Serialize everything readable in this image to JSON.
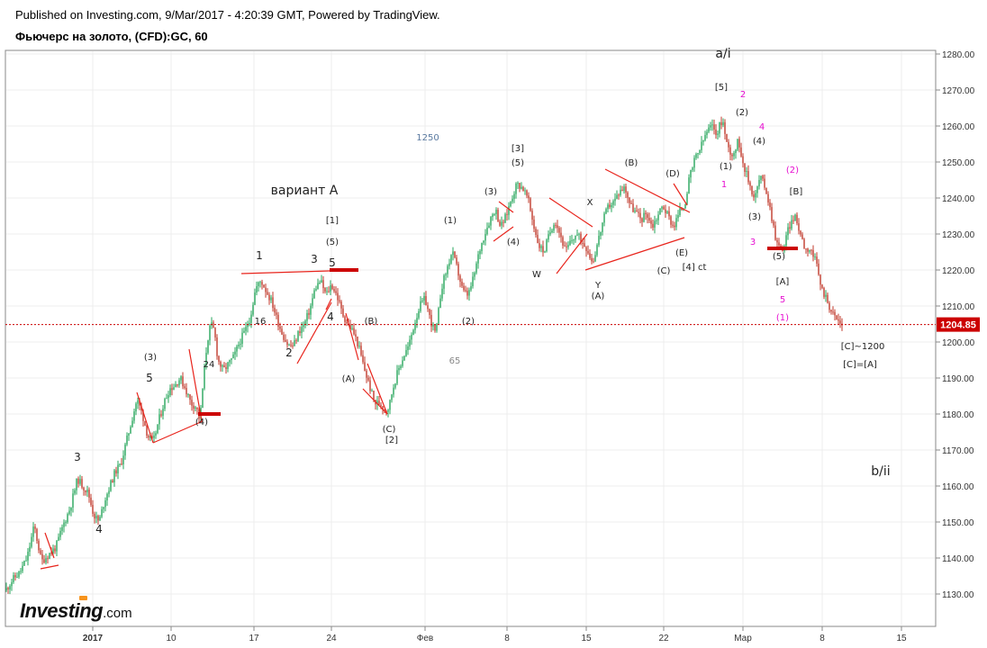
{
  "header": {
    "published": "Published on Investing.com, 9/Mar/2017 - 4:20:39 GMT, Powered by TradingView.",
    "title": "Фьючерс на золото, (CFD):GC, 60"
  },
  "logo": {
    "name": "Investing",
    "tld": ".com",
    "accent": "#f7941d"
  },
  "colors": {
    "up": "#26a65b",
    "down": "#c0392b",
    "line": "#e8241c",
    "level": "#cc0000",
    "grid": "#eeeeee",
    "pink": "#e60fd0"
  },
  "current_price": "1204.85",
  "chart_data": {
    "type": "candlestick",
    "ylim": [
      1122,
      1285
    ],
    "y_ticks": [
      1130,
      1140,
      1150,
      1160,
      1170,
      1180,
      1190,
      1200,
      1210,
      1220,
      1230,
      1240,
      1250,
      1260,
      1270,
      1280
    ],
    "x_ticks": [
      {
        "label": "2017",
        "x": 103,
        "bold": true
      },
      {
        "label": "10",
        "x": 190
      },
      {
        "label": "17",
        "x": 282
      },
      {
        "label": "24",
        "x": 368
      },
      {
        "label": "Фев",
        "x": 472
      },
      {
        "label": "8",
        "x": 563
      },
      {
        "label": "15",
        "x": 651
      },
      {
        "label": "22",
        "x": 737
      },
      {
        "label": "Мар",
        "x": 825
      },
      {
        "label": "8",
        "x": 913
      },
      {
        "label": "15",
        "x": 1001
      }
    ],
    "path": [
      [
        6,
        1131
      ],
      [
        14,
        1134
      ],
      [
        22,
        1136
      ],
      [
        30,
        1140
      ],
      [
        38,
        1149
      ],
      [
        46,
        1139
      ],
      [
        54,
        1141
      ],
      [
        62,
        1143
      ],
      [
        70,
        1149
      ],
      [
        78,
        1154
      ],
      [
        86,
        1162
      ],
      [
        92,
        1160
      ],
      [
        98,
        1158
      ],
      [
        104,
        1152
      ],
      [
        110,
        1150
      ],
      [
        116,
        1156
      ],
      [
        122,
        1160
      ],
      [
        128,
        1164
      ],
      [
        134,
        1166
      ],
      [
        140,
        1172
      ],
      [
        146,
        1178
      ],
      [
        152,
        1184
      ],
      [
        158,
        1180
      ],
      [
        164,
        1174
      ],
      [
        170,
        1172
      ],
      [
        176,
        1178
      ],
      [
        182,
        1183
      ],
      [
        188,
        1187
      ],
      [
        194,
        1188
      ],
      [
        200,
        1190
      ],
      [
        206,
        1187
      ],
      [
        212,
        1183
      ],
      [
        218,
        1182
      ],
      [
        222,
        1178
      ],
      [
        226,
        1190
      ],
      [
        230,
        1200
      ],
      [
        234,
        1205
      ],
      [
        238,
        1203
      ],
      [
        242,
        1195
      ],
      [
        248,
        1192
      ],
      [
        254,
        1194
      ],
      [
        260,
        1196
      ],
      [
        266,
        1200
      ],
      [
        272,
        1203
      ],
      [
        278,
        1207
      ],
      [
        284,
        1215
      ],
      [
        290,
        1217
      ],
      [
        296,
        1214
      ],
      [
        302,
        1211
      ],
      [
        308,
        1206
      ],
      [
        314,
        1202
      ],
      [
        320,
        1199
      ],
      [
        326,
        1199
      ],
      [
        332,
        1203
      ],
      [
        338,
        1205
      ],
      [
        344,
        1209
      ],
      [
        350,
        1215
      ],
      [
        356,
        1217
      ],
      [
        362,
        1213
      ],
      [
        368,
        1216
      ],
      [
        374,
        1213
      ],
      [
        380,
        1208
      ],
      [
        386,
        1205
      ],
      [
        392,
        1203
      ],
      [
        398,
        1199
      ],
      [
        404,
        1193
      ],
      [
        410,
        1188
      ],
      [
        416,
        1183
      ],
      [
        422,
        1183
      ],
      [
        428,
        1181
      ],
      [
        432,
        1182
      ],
      [
        436,
        1187
      ],
      [
        442,
        1192
      ],
      [
        448,
        1196
      ],
      [
        454,
        1199
      ],
      [
        460,
        1205
      ],
      [
        466,
        1210
      ],
      [
        472,
        1212
      ],
      [
        478,
        1206
      ],
      [
        484,
        1202
      ],
      [
        490,
        1215
      ],
      [
        496,
        1220
      ],
      [
        502,
        1225
      ],
      [
        508,
        1220
      ],
      [
        514,
        1214
      ],
      [
        520,
        1213
      ],
      [
        526,
        1218
      ],
      [
        532,
        1225
      ],
      [
        538,
        1230
      ],
      [
        544,
        1234
      ],
      [
        550,
        1237
      ],
      [
        556,
        1232
      ],
      [
        562,
        1235
      ],
      [
        568,
        1240
      ],
      [
        574,
        1244
      ],
      [
        580,
        1243
      ],
      [
        586,
        1240
      ],
      [
        592,
        1233
      ],
      [
        598,
        1227
      ],
      [
        604,
        1225
      ],
      [
        610,
        1230
      ],
      [
        616,
        1234
      ],
      [
        622,
        1230
      ],
      [
        628,
        1225
      ],
      [
        634,
        1228
      ],
      [
        640,
        1230
      ],
      [
        646,
        1228
      ],
      [
        652,
        1226
      ],
      [
        658,
        1222
      ],
      [
        664,
        1228
      ],
      [
        670,
        1234
      ],
      [
        676,
        1238
      ],
      [
        682,
        1239
      ],
      [
        688,
        1242
      ],
      [
        694,
        1243
      ],
      [
        700,
        1238
      ],
      [
        706,
        1236
      ],
      [
        712,
        1234
      ],
      [
        718,
        1236
      ],
      [
        724,
        1232
      ],
      [
        730,
        1235
      ],
      [
        736,
        1238
      ],
      [
        742,
        1235
      ],
      [
        748,
        1232
      ],
      [
        754,
        1236
      ],
      [
        760,
        1238
      ],
      [
        766,
        1246
      ],
      [
        772,
        1251
      ],
      [
        778,
        1254
      ],
      [
        784,
        1258
      ],
      [
        790,
        1260
      ],
      [
        796,
        1258
      ],
      [
        802,
        1262
      ],
      [
        808,
        1254
      ],
      [
        814,
        1252
      ],
      [
        820,
        1256
      ],
      [
        826,
        1249
      ],
      [
        832,
        1244
      ],
      [
        838,
        1240
      ],
      [
        844,
        1246
      ],
      [
        850,
        1243
      ],
      [
        856,
        1236
      ],
      [
        862,
        1228
      ],
      [
        866,
        1226
      ],
      [
        870,
        1226
      ],
      [
        876,
        1232
      ],
      [
        882,
        1235
      ],
      [
        888,
        1231
      ],
      [
        894,
        1226
      ],
      [
        900,
        1226
      ],
      [
        906,
        1222
      ],
      [
        912,
        1215
      ],
      [
        918,
        1212
      ],
      [
        924,
        1208
      ],
      [
        930,
        1206
      ],
      [
        936,
        1204.85
      ]
    ],
    "lines": [
      [
        45,
        1137,
        65,
        1138
      ],
      [
        50,
        1147,
        60,
        1140
      ],
      [
        152,
        1186,
        170,
        1172
      ],
      [
        170,
        1172,
        225,
        1178
      ],
      [
        210,
        1198,
        224,
        1178
      ],
      [
        268,
        1219,
        397,
        1220
      ],
      [
        330,
        1194,
        368,
        1211
      ],
      [
        362,
        1209,
        368,
        1212
      ],
      [
        384,
        1208,
        398,
        1195
      ],
      [
        403,
        1187,
        430,
        1180
      ],
      [
        408,
        1194,
        430,
        1180
      ],
      [
        548,
        1228,
        570,
        1232
      ],
      [
        554,
        1239,
        570,
        1236
      ],
      [
        610,
        1240,
        658,
        1232
      ],
      [
        618,
        1219,
        652,
        1230
      ],
      [
        650,
        1220,
        760,
        1229
      ],
      [
        672,
        1248,
        766,
        1236
      ],
      [
        748,
        1244,
        763,
        1238
      ]
    ],
    "levels": [
      [
        220,
        1180,
        245
      ],
      [
        366,
        1220,
        398
      ],
      [
        852,
        1226,
        886
      ]
    ],
    "annotations": [
      {
        "t": "вариант А",
        "x": 338,
        "y": 1241,
        "size": 14
      },
      {
        "t": "a/i",
        "x": 803,
        "y": 1279,
        "size": 14
      },
      {
        "t": "b/ii",
        "x": 978,
        "y": 1163,
        "size": 14
      },
      {
        "t": "1250",
        "x": 475,
        "y": 1256,
        "size": 10,
        "c": "#5a7aa0"
      },
      {
        "t": "65",
        "x": 505,
        "y": 1194,
        "size": 10,
        "c": "#888"
      },
      {
        "t": "3",
        "x": 86,
        "y": 1167,
        "size": 12
      },
      {
        "t": "4",
        "x": 110,
        "y": 1147,
        "size": 12
      },
      {
        "t": "5",
        "x": 166,
        "y": 1189,
        "size": 12
      },
      {
        "t": "(3)",
        "x": 167,
        "y": 1195,
        "size": 10
      },
      {
        "t": "(4)",
        "x": 224,
        "y": 1177,
        "size": 10
      },
      {
        "t": "24",
        "x": 232,
        "y": 1193,
        "size": 10
      },
      {
        "t": "1",
        "x": 288,
        "y": 1223,
        "size": 12
      },
      {
        "t": "16",
        "x": 289,
        "y": 1205,
        "size": 10
      },
      {
        "t": "2",
        "x": 321,
        "y": 1196,
        "size": 12
      },
      {
        "t": "3",
        "x": 349,
        "y": 1222,
        "size": 12
      },
      {
        "t": "5",
        "x": 369,
        "y": 1221,
        "size": 12
      },
      {
        "t": "4",
        "x": 367,
        "y": 1206,
        "size": 12
      },
      {
        "t": "[1]",
        "x": 369,
        "y": 1233,
        "size": 10
      },
      {
        "t": "(5)",
        "x": 369,
        "y": 1227,
        "size": 10
      },
      {
        "t": "(B)",
        "x": 412,
        "y": 1205,
        "size": 10
      },
      {
        "t": "(A)",
        "x": 387,
        "y": 1189,
        "size": 10
      },
      {
        "t": "(C)",
        "x": 432,
        "y": 1175,
        "size": 10
      },
      {
        "t": "[2]",
        "x": 435,
        "y": 1172,
        "size": 10
      },
      {
        "t": "(1)",
        "x": 500,
        "y": 1233,
        "size": 10
      },
      {
        "t": "(2)",
        "x": 520,
        "y": 1205,
        "size": 10
      },
      {
        "t": "(3)",
        "x": 545,
        "y": 1241,
        "size": 10
      },
      {
        "t": "(4)",
        "x": 570,
        "y": 1227,
        "size": 10
      },
      {
        "t": "[3]",
        "x": 575,
        "y": 1253,
        "size": 10
      },
      {
        "t": "(5)",
        "x": 575,
        "y": 1249,
        "size": 10
      },
      {
        "t": "W",
        "x": 596,
        "y": 1218,
        "size": 10
      },
      {
        "t": "X",
        "x": 655,
        "y": 1238,
        "size": 10
      },
      {
        "t": "Y",
        "x": 664,
        "y": 1215,
        "size": 10
      },
      {
        "t": "(A)",
        "x": 664,
        "y": 1212,
        "size": 10
      },
      {
        "t": "(B)",
        "x": 701,
        "y": 1249,
        "size": 10
      },
      {
        "t": "(C)",
        "x": 737,
        "y": 1219,
        "size": 10
      },
      {
        "t": "(D)",
        "x": 747,
        "y": 1246,
        "size": 10
      },
      {
        "t": "(E)",
        "x": 757,
        "y": 1224,
        "size": 10
      },
      {
        "t": "[4] ct",
        "x": 771,
        "y": 1220,
        "size": 10
      },
      {
        "t": "[5]",
        "x": 801,
        "y": 1270,
        "size": 10
      },
      {
        "t": "(2)",
        "x": 824,
        "y": 1263,
        "size": 10
      },
      {
        "t": "(4)",
        "x": 843,
        "y": 1255,
        "size": 10
      },
      {
        "t": "(1)",
        "x": 806,
        "y": 1248,
        "size": 10
      },
      {
        "t": "(3)",
        "x": 838,
        "y": 1234,
        "size": 10
      },
      {
        "t": "[B]",
        "x": 884,
        "y": 1241,
        "size": 10
      },
      {
        "t": "(5)",
        "x": 865,
        "y": 1223,
        "size": 10
      },
      {
        "t": "[A]",
        "x": 869,
        "y": 1216,
        "size": 10
      },
      {
        "t": "2",
        "x": 825,
        "y": 1268,
        "size": 10,
        "c": "#e60fd0"
      },
      {
        "t": "4",
        "x": 846,
        "y": 1259,
        "size": 10,
        "c": "#e60fd0"
      },
      {
        "t": "1",
        "x": 804,
        "y": 1243,
        "size": 10,
        "c": "#e60fd0"
      },
      {
        "t": "(2)",
        "x": 880,
        "y": 1247,
        "size": 10,
        "c": "#e60fd0"
      },
      {
        "t": "3",
        "x": 836,
        "y": 1227,
        "size": 10,
        "c": "#e60fd0"
      },
      {
        "t": "5",
        "x": 869,
        "y": 1211,
        "size": 10,
        "c": "#e60fd0"
      },
      {
        "t": "(1)",
        "x": 869,
        "y": 1206,
        "size": 10,
        "c": "#e60fd0"
      },
      {
        "t": "[C]~1200",
        "x": 958,
        "y": 1198,
        "size": 10
      },
      {
        "t": "[C]=[A]",
        "x": 955,
        "y": 1193,
        "size": 10
      }
    ]
  }
}
